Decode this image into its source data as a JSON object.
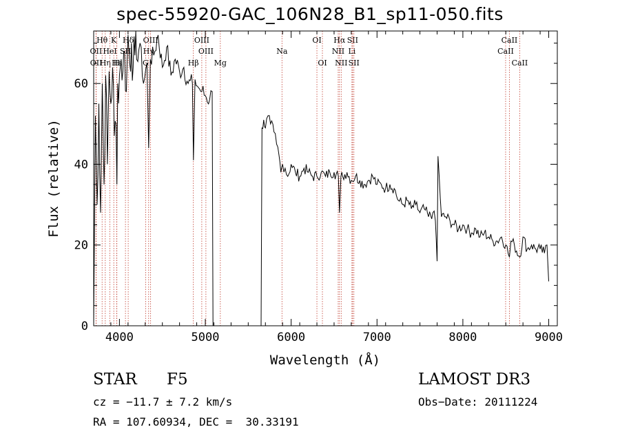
{
  "figure": {
    "title": "spec-55920-GAC_106N28_B1_sp11-050.fits",
    "classification": "STAR",
    "subclass": "F5",
    "survey": "LAMOST DR3",
    "cz": "cz = −11.7 ± 7.2 km/s",
    "obs_date": "Obs−Date: 20111224",
    "coords": "RA = 107.60934, DEC =  30.33191"
  },
  "chart_data": {
    "type": "line",
    "title": "spec-55920-GAC_106N28_B1_sp11-050.fits",
    "xlabel": "Wavelength (Å)",
    "ylabel": "Flux (relative)",
    "xlim": [
      3700,
      9100
    ],
    "ylim": [
      0,
      73
    ],
    "xticks": [
      4000,
      5000,
      6000,
      7000,
      8000,
      9000
    ],
    "yticks": [
      0,
      20,
      40,
      60
    ],
    "grid": false,
    "series": [
      {
        "name": "flux",
        "x": [
          3700,
          3720,
          3740,
          3760,
          3780,
          3800,
          3820,
          3840,
          3860,
          3880,
          3900,
          3920,
          3940,
          3960,
          3970,
          3980,
          4000,
          4020,
          4040,
          4060,
          4080,
          4100,
          4120,
          4140,
          4160,
          4180,
          4200,
          4240,
          4280,
          4320,
          4340,
          4360,
          4400,
          4450,
          4500,
          4550,
          4600,
          4650,
          4700,
          4750,
          4800,
          4850,
          4862,
          4880,
          4920,
          4960,
          5000,
          5050,
          5080,
          5090,
          5100,
          5650,
          5660,
          5680,
          5700,
          5730,
          5760,
          5800,
          5830,
          5860,
          5880,
          5900,
          5930,
          5960,
          6000,
          6050,
          6100,
          6150,
          6200,
          6250,
          6300,
          6350,
          6400,
          6450,
          6500,
          6550,
          6563,
          6580,
          6600,
          6650,
          6700,
          6750,
          6800,
          6850,
          6900,
          6950,
          7000,
          7050,
          7100,
          7150,
          7200,
          7250,
          7300,
          7350,
          7400,
          7450,
          7500,
          7550,
          7600,
          7650,
          7680,
          7700,
          7710,
          7750,
          7800,
          7850,
          7900,
          7950,
          8000,
          8050,
          8100,
          8150,
          8200,
          8250,
          8300,
          8350,
          8400,
          8450,
          8500,
          8542,
          8560,
          8600,
          8662,
          8700,
          8750,
          8800,
          8850,
          8900,
          8950,
          8980,
          9000
        ],
        "values": [
          0,
          52,
          30,
          55,
          28,
          60,
          35,
          62,
          40,
          63,
          55,
          64,
          47,
          50,
          35,
          60,
          62,
          66,
          63,
          68,
          58,
          72,
          65,
          70,
          64,
          67,
          66,
          70,
          60,
          65,
          44,
          66,
          67,
          72,
          64,
          69,
          62,
          66,
          63,
          64,
          60,
          60,
          41,
          61,
          59,
          58,
          57,
          56,
          58,
          0,
          0,
          0,
          49,
          51,
          49,
          52,
          50,
          48,
          45,
          42,
          38,
          40,
          39,
          37,
          40,
          38,
          37,
          39,
          38,
          37,
          37,
          38,
          37,
          38,
          38,
          37,
          28,
          37,
          37,
          38,
          36,
          37,
          36,
          35,
          36,
          37,
          35,
          35,
          34,
          35,
          34,
          31,
          30,
          31,
          29,
          30,
          28,
          29,
          27,
          28,
          26,
          16,
          42,
          27,
          27,
          26,
          25,
          24,
          25,
          24,
          23,
          24,
          22,
          23,
          22,
          21,
          21,
          22,
          20,
          17,
          21,
          20,
          17,
          22,
          19,
          20,
          19,
          19,
          18,
          20,
          11
        ]
      }
    ],
    "lines": [
      {
        "name": "Hθ",
        "wave": 3798,
        "row": 1
      },
      {
        "name": "OII",
        "wave": 3727,
        "row": 2
      },
      {
        "name": "OII",
        "wave": 3729,
        "row": 3
      },
      {
        "name": "Hη",
        "wave": 3835,
        "row": 3
      },
      {
        "name": "K",
        "wave": 3934,
        "row": 1
      },
      {
        "name": "HeI",
        "wave": 3889,
        "row": 2
      },
      {
        "name": "H",
        "wave": 3969,
        "row": 3
      },
      {
        "name": "Hε",
        "wave": 3970,
        "row": 3
      },
      {
        "name": "SII",
        "wave": 4070,
        "row": 2
      },
      {
        "name": "Hδ",
        "wave": 4102,
        "row": 1
      },
      {
        "name": "OIII",
        "wave": 4363,
        "row": 1
      },
      {
        "name": "Hγ",
        "wave": 4340,
        "row": 2
      },
      {
        "name": "G",
        "wave": 4305,
        "row": 3
      },
      {
        "name": "OIII",
        "wave": 4959,
        "row": 1
      },
      {
        "name": "OIII",
        "wave": 5007,
        "row": 2
      },
      {
        "name": "Hβ",
        "wave": 4861,
        "row": 3
      },
      {
        "name": "Mg",
        "wave": 5175,
        "row": 3
      },
      {
        "name": "Na",
        "wave": 5893,
        "row": 2
      },
      {
        "name": "OI",
        "wave": 6300,
        "row": 1
      },
      {
        "name": "OI",
        "wave": 6364,
        "row": 3
      },
      {
        "name": "Hα",
        "wave": 6563,
        "row": 1
      },
      {
        "name": "NII",
        "wave": 6548,
        "row": 2
      },
      {
        "name": "NII",
        "wave": 6583,
        "row": 3
      },
      {
        "name": "SII",
        "wave": 6716,
        "row": 1
      },
      {
        "name": "Li",
        "wave": 6708,
        "row": 2
      },
      {
        "name": "SII",
        "wave": 6731,
        "row": 3
      },
      {
        "name": "CaII",
        "wave": 8542,
        "row": 1
      },
      {
        "name": "CaII",
        "wave": 8498,
        "row": 2
      },
      {
        "name": "CaII",
        "wave": 8662,
        "row": 3
      }
    ]
  }
}
